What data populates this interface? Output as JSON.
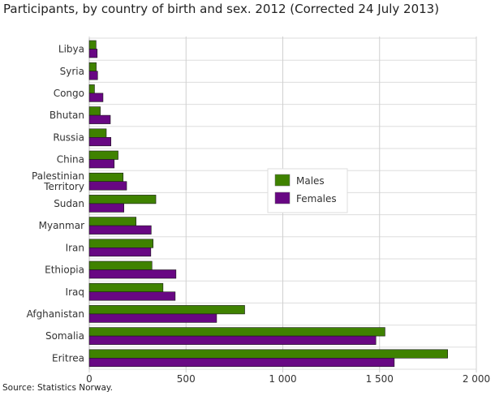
{
  "chart_data": {
    "type": "bar",
    "orientation": "horizontal",
    "title": "Participants, by country of birth and sex. 2012 (Corrected 24 July 2013)",
    "source": "Source: Statistics Norway.",
    "categories": [
      "Libya",
      "Syria",
      "Congo",
      "Bhutan",
      "Russia",
      "China",
      "Palestinian Territory",
      "Sudan",
      "Myanmar",
      "Iran",
      "Ethiopia",
      "Iraq",
      "Afghanistan",
      "Somalia",
      "Eritrea"
    ],
    "series": [
      {
        "name": "Males",
        "color": "#3f8200",
        "values": [
          35,
          36,
          27,
          57,
          88,
          149,
          175,
          344,
          242,
          330,
          324,
          381,
          803,
          1528,
          1852
        ]
      },
      {
        "name": "Females",
        "color": "#680783",
        "values": [
          41,
          43,
          71,
          109,
          112,
          129,
          193,
          179,
          320,
          318,
          448,
          444,
          658,
          1481,
          1576
        ]
      }
    ],
    "xlim": [
      0,
      2000
    ],
    "xticks": [
      0,
      500,
      1000,
      1500,
      2000
    ],
    "xtick_labels": [
      "0",
      "500",
      "1 000",
      "1 500",
      "2 000"
    ],
    "grid": true,
    "legend": "center"
  }
}
